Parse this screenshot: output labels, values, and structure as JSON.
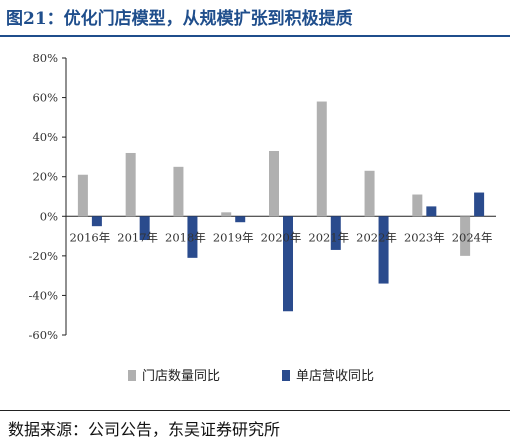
{
  "header": {
    "title": "图21：优化门店模型，从规模扩张到积极提质"
  },
  "chart_data": {
    "type": "bar",
    "categories": [
      "2016年",
      "2017年",
      "2018年",
      "2019年",
      "2020年",
      "2021年",
      "2022年",
      "2023年",
      "2024年"
    ],
    "series": [
      {
        "name": "门店数量同比",
        "color": "#b0b0b0",
        "values": [
          21,
          32,
          25,
          2,
          33,
          58,
          23,
          11,
          -20
        ]
      },
      {
        "name": "单店营收同比",
        "color": "#2a4b8d",
        "values": [
          -5,
          -12,
          -21,
          -3,
          -48,
          -17,
          -34,
          5,
          12
        ]
      }
    ],
    "y_ticks": [
      "80%",
      "60%",
      "40%",
      "20%",
      "0%",
      "-20%",
      "-40%",
      "-60%"
    ],
    "ylim": [
      -60,
      80
    ],
    "legend_position": "bottom",
    "grid": false
  },
  "footer": {
    "source": "数据来源：公司公告，东吴证券研究所"
  }
}
